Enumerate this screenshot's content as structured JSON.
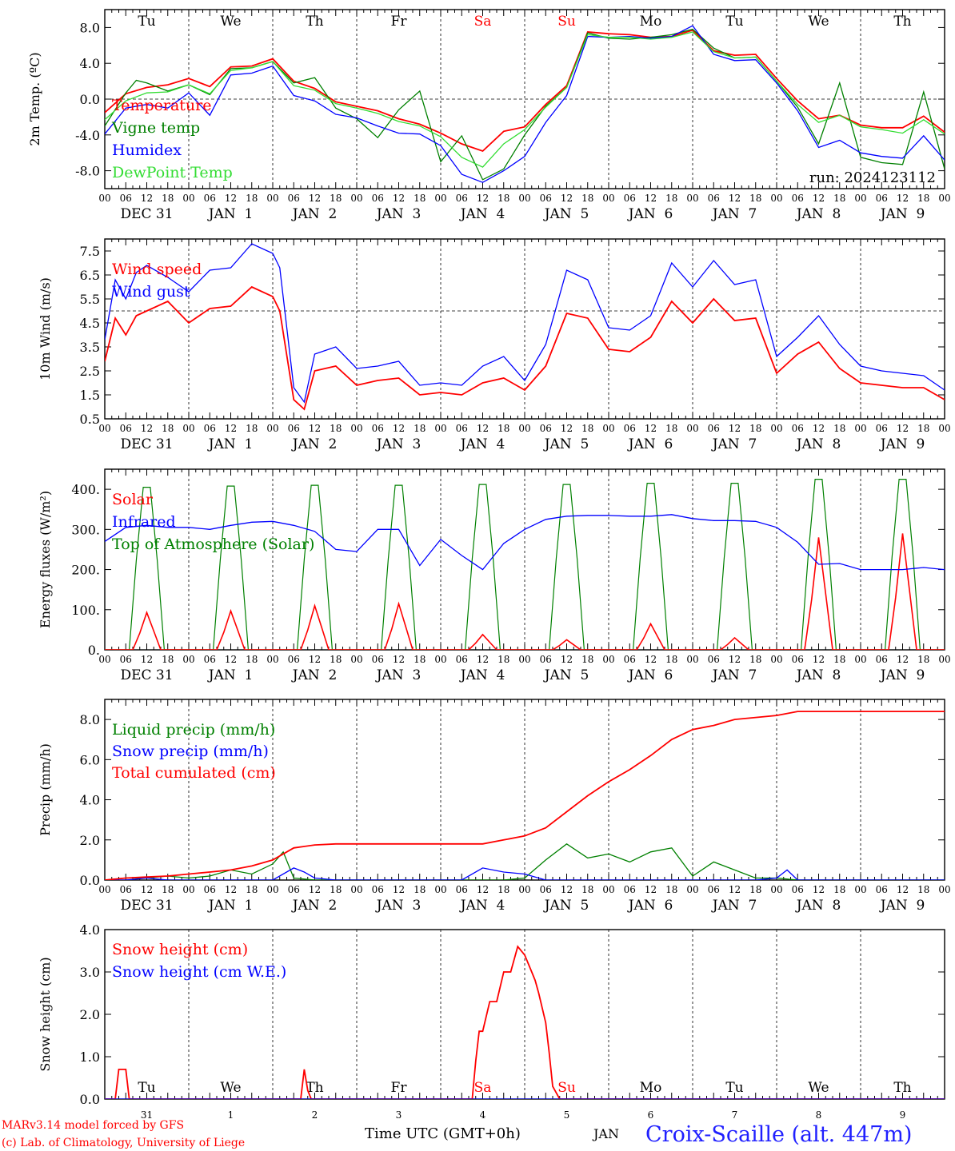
{
  "footer": {
    "model_line": "MARv3.14 model forced by GFS",
    "copyright_line": "(c) Lab. of Climatology, University of Liege",
    "time_axis_label": "Time UTC (GMT+0h)",
    "month_label": "JAN",
    "station": "Croix-Scaille (alt. 447m)"
  },
  "run_label": "run: 2024123112",
  "colors": {
    "red": "#ff0000",
    "green": "#008000",
    "blue": "#0000ff",
    "light_green": "#33dd33",
    "weekend": "#ff0000",
    "text": "#000000"
  },
  "days": [
    "Tu",
    "We",
    "Th",
    "Fr",
    "Sa",
    "Su",
    "Mo",
    "Tu",
    "We",
    "Th"
  ],
  "weekend_days": [
    "Sa",
    "Su"
  ],
  "date_labels": [
    "DEC 31",
    "JAN  1",
    "JAN  2",
    "JAN  3",
    "JAN  4",
    "JAN  5",
    "JAN  6",
    "JAN  7",
    "JAN  8",
    "JAN  9"
  ],
  "hour_ticks": [
    "00",
    "06",
    "12",
    "18"
  ],
  "day_numbers": [
    "31",
    "1",
    "2",
    "3",
    "4",
    "5",
    "6",
    "7",
    "8",
    "9"
  ],
  "chart_data": [
    {
      "type": "line",
      "ylabel": "2m Temp. (ºC)",
      "ylim": [
        -10,
        10
      ],
      "yticks": [
        -8,
        -4,
        0,
        4,
        8
      ],
      "ytick_labels": [
        "-8.0",
        "-4.0",
        "0.0",
        "4.0",
        "8.0"
      ],
      "ref_line": 0,
      "x_unit": "hours from DEC 31 00 UTC",
      "legend": [
        "Temperature",
        "Vigne temp",
        "Humidex",
        "DewPoint Temp"
      ],
      "series": [
        {
          "name": "Temperature",
          "color": "red",
          "x": [
            0,
            6,
            12,
            18,
            24,
            30,
            36,
            42,
            48,
            54,
            60,
            66,
            72,
            78,
            84,
            90,
            96,
            102,
            108,
            114,
            120,
            126,
            132,
            138,
            144,
            150,
            156,
            162,
            168,
            174,
            180,
            186,
            192,
            198,
            204,
            210,
            216,
            222,
            228,
            234,
            240
          ],
          "values": [
            -1.5,
            0.6,
            1.3,
            1.6,
            2.3,
            1.4,
            3.6,
            3.7,
            4.5,
            2.0,
            1.2,
            -0.3,
            -0.8,
            -1.3,
            -2.2,
            -2.8,
            -3.8,
            -5.0,
            -5.8,
            -3.6,
            -3.1,
            -0.6,
            1.5,
            7.5,
            7.3,
            7.2,
            6.9,
            7.0,
            7.7,
            5.4,
            4.9,
            5.0,
            2.3,
            -0.2,
            -2.2,
            -1.8,
            -2.9,
            -3.2,
            -3.2,
            -1.9,
            -3.7
          ]
        },
        {
          "name": "Vigne temp",
          "color": "green",
          "x": [
            0,
            6,
            9,
            12,
            18,
            24,
            30,
            36,
            42,
            48,
            54,
            60,
            66,
            72,
            78,
            84,
            90,
            96,
            102,
            108,
            114,
            120,
            126,
            132,
            138,
            144,
            150,
            156,
            162,
            168,
            174,
            180,
            186,
            192,
            198,
            204,
            210,
            216,
            222,
            228,
            234,
            240
          ],
          "values": [
            -3.0,
            0.7,
            2.1,
            1.8,
            0.9,
            1.6,
            0.5,
            3.4,
            3.5,
            4.2,
            1.8,
            2.4,
            -1.0,
            -2.2,
            -4.3,
            -1.2,
            0.9,
            -7.0,
            -4.1,
            -9.0,
            -7.8,
            -4.0,
            -0.8,
            1.3,
            7.4,
            6.8,
            6.7,
            6.9,
            7.2,
            7.8,
            5.7,
            4.6,
            4.7,
            2.0,
            -0.9,
            -5.0,
            1.8,
            -6.5,
            -7.1,
            -7.3,
            0.8,
            -7.8
          ]
        },
        {
          "name": "Humidex",
          "color": "blue",
          "x": [
            0,
            6,
            12,
            18,
            24,
            30,
            36,
            42,
            48,
            54,
            60,
            66,
            72,
            78,
            84,
            90,
            96,
            102,
            108,
            114,
            120,
            126,
            132,
            138,
            144,
            150,
            156,
            162,
            168,
            174,
            180,
            186,
            192,
            198,
            204,
            210,
            216,
            222,
            228,
            234,
            240
          ],
          "values": [
            -3.9,
            -1.0,
            -0.6,
            -1.0,
            0.7,
            -1.8,
            2.7,
            2.9,
            3.7,
            0.4,
            -0.2,
            -1.7,
            -2.1,
            -3.0,
            -3.8,
            -3.9,
            -5.2,
            -8.4,
            -9.3,
            -8.0,
            -6.4,
            -2.6,
            0.4,
            7.0,
            6.9,
            7.0,
            6.8,
            7.0,
            8.2,
            5.0,
            4.3,
            4.4,
            1.8,
            -1.3,
            -5.4,
            -4.6,
            -6.0,
            -6.4,
            -6.6,
            -4.1,
            -6.8
          ]
        },
        {
          "name": "DewPoint Temp",
          "color": "light_green",
          "x": [
            0,
            6,
            12,
            18,
            24,
            30,
            36,
            42,
            48,
            54,
            60,
            66,
            72,
            78,
            84,
            90,
            96,
            102,
            108,
            114,
            120,
            126,
            132,
            138,
            144,
            150,
            156,
            162,
            168,
            174,
            180,
            186,
            192,
            198,
            204,
            210,
            216,
            222,
            228,
            234,
            240
          ],
          "values": [
            -2.3,
            -0.2,
            0.7,
            0.8,
            1.6,
            0.6,
            3.2,
            3.5,
            4.2,
            1.5,
            1.0,
            -0.5,
            -1.0,
            -1.6,
            -2.5,
            -3.0,
            -4.2,
            -6.5,
            -7.6,
            -5.0,
            -3.4,
            -0.9,
            1.3,
            7.2,
            6.9,
            6.9,
            6.7,
            6.9,
            7.5,
            5.3,
            4.6,
            4.7,
            2.0,
            -0.6,
            -2.6,
            -1.8,
            -3.1,
            -3.4,
            -3.8,
            -2.3,
            -3.9
          ]
        }
      ]
    },
    {
      "type": "line",
      "ylabel": "10m Wind (m/s)",
      "ylim": [
        0.5,
        8.0
      ],
      "yticks": [
        0.5,
        1.5,
        2.5,
        3.5,
        4.5,
        5.5,
        6.5,
        7.5
      ],
      "ytick_labels": [
        "0.5",
        "1.5",
        "2.5",
        "3.5",
        "4.5",
        "5.5",
        "6.5",
        "7.5"
      ],
      "ref_line": 5.0,
      "x_unit": "hours from DEC 31 00 UTC",
      "legend": [
        "Wind speed",
        "Wind gust"
      ],
      "series": [
        {
          "name": "Wind speed",
          "color": "red",
          "x": [
            0,
            3,
            6,
            9,
            12,
            18,
            24,
            30,
            36,
            42,
            48,
            50,
            54,
            57,
            60,
            66,
            72,
            78,
            84,
            90,
            96,
            102,
            108,
            114,
            120,
            126,
            132,
            138,
            144,
            150,
            156,
            162,
            168,
            174,
            180,
            186,
            192,
            198,
            204,
            210,
            216,
            222,
            228,
            234,
            240
          ],
          "values": [
            2.9,
            4.7,
            4.0,
            4.8,
            5.0,
            5.4,
            4.5,
            5.1,
            5.2,
            6.0,
            5.6,
            5.0,
            1.3,
            0.9,
            2.5,
            2.7,
            1.9,
            2.1,
            2.2,
            1.5,
            1.6,
            1.5,
            2.0,
            2.2,
            1.7,
            2.7,
            4.9,
            4.7,
            3.4,
            3.3,
            3.9,
            5.4,
            4.5,
            5.5,
            4.6,
            4.7,
            2.4,
            3.2,
            3.7,
            2.6,
            2.0,
            1.9,
            1.8,
            1.8,
            1.3
          ]
        },
        {
          "name": "Wind gust",
          "color": "blue",
          "x": [
            0,
            3,
            6,
            9,
            12,
            18,
            24,
            30,
            36,
            42,
            48,
            50,
            54,
            57,
            60,
            66,
            72,
            78,
            84,
            90,
            96,
            102,
            108,
            114,
            120,
            126,
            132,
            138,
            144,
            150,
            156,
            162,
            168,
            174,
            180,
            186,
            192,
            198,
            204,
            210,
            216,
            222,
            228,
            234,
            240
          ],
          "values": [
            3.8,
            6.3,
            5.5,
            6.6,
            6.9,
            6.4,
            5.8,
            6.7,
            6.8,
            7.8,
            7.4,
            6.8,
            1.8,
            1.2,
            3.2,
            3.5,
            2.6,
            2.7,
            2.9,
            1.9,
            2.0,
            1.9,
            2.7,
            3.1,
            2.1,
            3.6,
            6.7,
            6.3,
            4.3,
            4.2,
            4.8,
            7.0,
            6.0,
            7.1,
            6.1,
            6.3,
            3.1,
            3.9,
            4.8,
            3.6,
            2.7,
            2.5,
            2.4,
            2.3,
            1.7
          ]
        }
      ]
    },
    {
      "type": "line",
      "ylabel": "Energy fluxes (W/m²)",
      "ylim": [
        0,
        450
      ],
      "yticks": [
        0,
        100,
        200,
        300,
        400
      ],
      "ytick_labels": [
        "0.",
        "100.",
        "200.",
        "300.",
        "400."
      ],
      "x_unit": "hours from DEC 31 00 UTC",
      "legend": [
        "Solar",
        "Infrared",
        "Top of Atmosphere (Solar)"
      ],
      "solar_peaks": [
        93,
        97,
        110,
        115,
        38,
        25,
        65,
        30,
        280,
        290
      ],
      "toa_peaks": [
        405,
        408,
        410,
        410,
        412,
        412,
        415,
        415,
        425,
        425
      ],
      "series": [
        {
          "name": "Infrared",
          "color": "blue",
          "x": [
            0,
            6,
            12,
            18,
            24,
            30,
            36,
            42,
            48,
            54,
            60,
            66,
            72,
            78,
            84,
            90,
            96,
            102,
            108,
            114,
            120,
            126,
            132,
            138,
            144,
            150,
            156,
            162,
            168,
            174,
            180,
            186,
            192,
            198,
            204,
            210,
            216,
            222,
            228,
            234,
            240
          ],
          "values": [
            270,
            305,
            310,
            305,
            305,
            300,
            310,
            318,
            320,
            310,
            295,
            250,
            245,
            300,
            300,
            210,
            275,
            235,
            200,
            265,
            300,
            325,
            333,
            335,
            335,
            333,
            333,
            337,
            327,
            322,
            322,
            320,
            305,
            268,
            213,
            215,
            200,
            200,
            200,
            205,
            200
          ]
        }
      ]
    },
    {
      "type": "line",
      "ylabel": "Precip (mm/h)",
      "ylim": [
        0,
        9
      ],
      "yticks": [
        0,
        2,
        4,
        6,
        8
      ],
      "ytick_labels": [
        "0.0",
        "2.0",
        "4.0",
        "6.0",
        "8.0"
      ],
      "x_unit": "hours from DEC 31 00 UTC",
      "legend": [
        "Liquid precip (mm/h)",
        "Snow precip (mm/h)",
        "Total cumulated (cm)"
      ],
      "series": [
        {
          "name": "Liquid precip (mm/h)",
          "color": "green",
          "x": [
            0,
            6,
            12,
            18,
            24,
            30,
            36,
            42,
            48,
            51,
            54,
            60,
            66,
            72,
            96,
            108,
            114,
            120,
            126,
            132,
            138,
            144,
            150,
            156,
            162,
            168,
            174,
            180,
            186,
            192,
            198,
            204,
            210,
            216,
            240
          ],
          "values": [
            0,
            0.1,
            0.1,
            0.2,
            0.1,
            0.2,
            0.5,
            0.3,
            0.8,
            1.4,
            0.1,
            0,
            0,
            0,
            0,
            0,
            0,
            0.1,
            1.0,
            1.8,
            1.1,
            1.3,
            0.9,
            1.4,
            1.6,
            0.2,
            0.9,
            0.5,
            0.1,
            0.1,
            0,
            0,
            0,
            0,
            0
          ]
        },
        {
          "name": "Snow precip (mm/h)",
          "color": "blue",
          "x": [
            0,
            6,
            12,
            18,
            24,
            48,
            54,
            57,
            60,
            66,
            72,
            102,
            108,
            114,
            120,
            126,
            186,
            192,
            195,
            198,
            240
          ],
          "values": [
            0,
            0,
            0.1,
            0,
            0,
            0,
            0.6,
            0.4,
            0.1,
            0,
            0,
            0,
            0.6,
            0.4,
            0.3,
            0,
            0,
            0.1,
            0.5,
            0,
            0
          ]
        },
        {
          "name": "Total cumulated (cm)",
          "color": "red",
          "x": [
            0,
            6,
            12,
            18,
            24,
            30,
            36,
            42,
            48,
            54,
            60,
            66,
            72,
            84,
            96,
            108,
            114,
            120,
            126,
            132,
            138,
            144,
            150,
            156,
            162,
            168,
            174,
            180,
            186,
            192,
            198,
            204,
            240
          ],
          "values": [
            0,
            0.1,
            0.15,
            0.2,
            0.3,
            0.4,
            0.5,
            0.7,
            1.0,
            1.6,
            1.75,
            1.8,
            1.8,
            1.8,
            1.8,
            1.8,
            2.0,
            2.2,
            2.6,
            3.4,
            4.2,
            4.9,
            5.5,
            6.2,
            7.0,
            7.5,
            7.7,
            8.0,
            8.1,
            8.2,
            8.4,
            8.4,
            8.4
          ]
        }
      ]
    },
    {
      "type": "line",
      "ylabel": "Snow height (cm)",
      "ylim": [
        0,
        4
      ],
      "yticks": [
        0,
        1,
        2,
        3,
        4
      ],
      "ytick_labels": [
        "0.0",
        "1.0",
        "2.0",
        "3.0",
        "4.0"
      ],
      "x_unit": "hours from DEC 31 00 UTC",
      "legend": [
        "Snow height (cm)",
        "Snow height (cm W.E.)"
      ],
      "series": [
        {
          "name": "Snow height (cm)",
          "color": "red",
          "x": [
            0,
            3,
            4,
            5,
            6,
            7,
            48,
            56,
            57,
            58,
            59,
            60,
            62,
            105,
            106,
            107,
            108,
            110,
            112,
            114,
            116,
            118,
            120,
            122,
            123,
            124,
            126,
            127,
            128,
            130,
            132,
            134,
            136,
            138,
            240
          ],
          "values": [
            0,
            0,
            0.7,
            0.7,
            0.7,
            0,
            0,
            0,
            0.7,
            0.2,
            0,
            0,
            0,
            0,
            0.9,
            1.6,
            1.6,
            2.3,
            2.3,
            3.0,
            3.0,
            3.6,
            3.4,
            3.0,
            2.8,
            2.5,
            1.8,
            1.1,
            0.3,
            0,
            0,
            0,
            0,
            0,
            0
          ]
        },
        {
          "name": "Snow height (cm W.E.)",
          "color": "blue",
          "x": [
            0,
            240
          ],
          "values": [
            0,
            0
          ]
        }
      ]
    }
  ]
}
